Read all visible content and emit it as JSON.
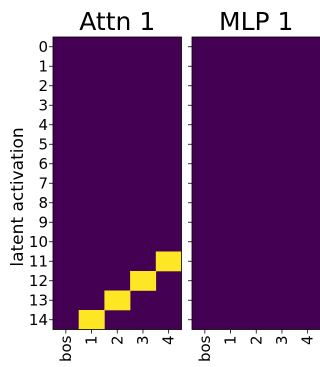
{
  "chart_data": {
    "type": "heatmap",
    "ylabel": "latent activation",
    "y_tick_labels": [
      "0",
      "1",
      "2",
      "3",
      "4",
      "5",
      "6",
      "7",
      "8",
      "9",
      "10",
      "11",
      "12",
      "13",
      "14"
    ],
    "x_tick_labels": [
      "bos",
      "1",
      "2",
      "3",
      "4"
    ],
    "colormap": "viridis",
    "low_color": "#440154",
    "high_color": "#fde725",
    "panels": [
      {
        "title": "Attn 1",
        "values": [
          [
            0,
            0,
            0,
            0,
            0
          ],
          [
            0,
            0,
            0,
            0,
            0
          ],
          [
            0,
            0,
            0,
            0,
            0
          ],
          [
            0,
            0,
            0,
            0,
            0
          ],
          [
            0,
            0,
            0,
            0,
            0
          ],
          [
            0,
            0,
            0,
            0,
            0
          ],
          [
            0,
            0,
            0,
            0,
            0
          ],
          [
            0,
            0,
            0,
            0,
            0
          ],
          [
            0,
            0,
            0,
            0,
            0
          ],
          [
            0,
            0,
            0,
            0,
            0
          ],
          [
            0,
            0,
            0,
            0,
            0
          ],
          [
            0,
            0,
            0,
            0,
            1
          ],
          [
            0,
            0,
            0,
            1,
            0
          ],
          [
            0,
            0,
            1,
            0,
            0
          ],
          [
            0,
            1,
            0,
            0,
            0
          ]
        ]
      },
      {
        "title": "MLP 1",
        "values": [
          [
            0,
            0,
            0,
            0,
            0
          ],
          [
            0,
            0,
            0,
            0,
            0
          ],
          [
            0,
            0,
            0,
            0,
            0
          ],
          [
            0,
            0,
            0,
            0,
            0
          ],
          [
            0,
            0,
            0,
            0,
            0
          ],
          [
            0,
            0,
            0,
            0,
            0
          ],
          [
            0,
            0,
            0,
            0,
            0
          ],
          [
            0,
            0,
            0,
            0,
            0
          ],
          [
            0,
            0,
            0,
            0,
            0
          ],
          [
            0,
            0,
            0,
            0,
            0
          ],
          [
            0,
            0,
            0,
            0,
            0
          ],
          [
            0,
            0,
            0,
            0,
            0
          ],
          [
            0,
            0,
            0,
            0,
            0
          ],
          [
            0,
            0,
            0,
            0,
            0
          ],
          [
            0,
            0,
            0,
            0,
            0
          ]
        ]
      }
    ]
  }
}
